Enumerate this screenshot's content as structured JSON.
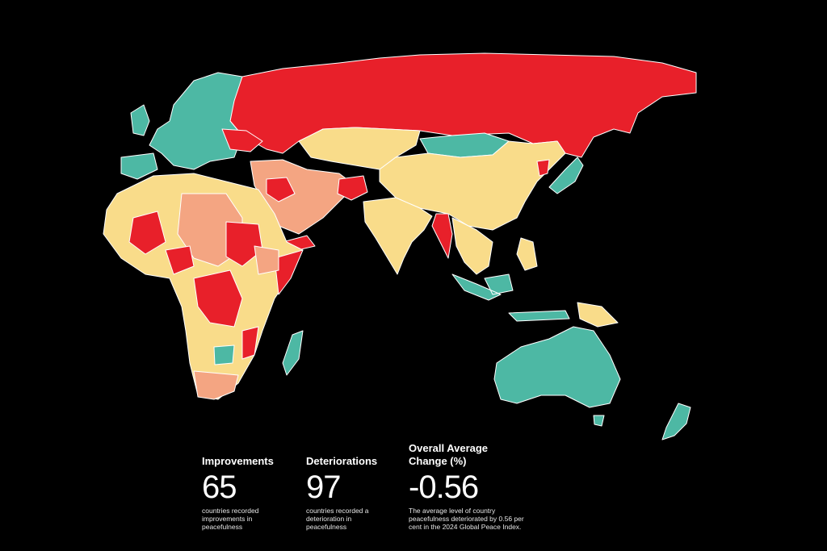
{
  "stats": [
    {
      "title": "Improvements",
      "value": 65,
      "description": "countries recorded improvements in peacefulness"
    },
    {
      "title": "Deteriorations",
      "value": 97,
      "description": "countries recorded a deterioration in peacefulness"
    },
    {
      "title": "Overall Average Change (%)",
      "value": -0.56,
      "description": "The average level of country peacefulness deteriorated by 0.56 per cent in the 2024 Global Peace Index."
    }
  ]
}
